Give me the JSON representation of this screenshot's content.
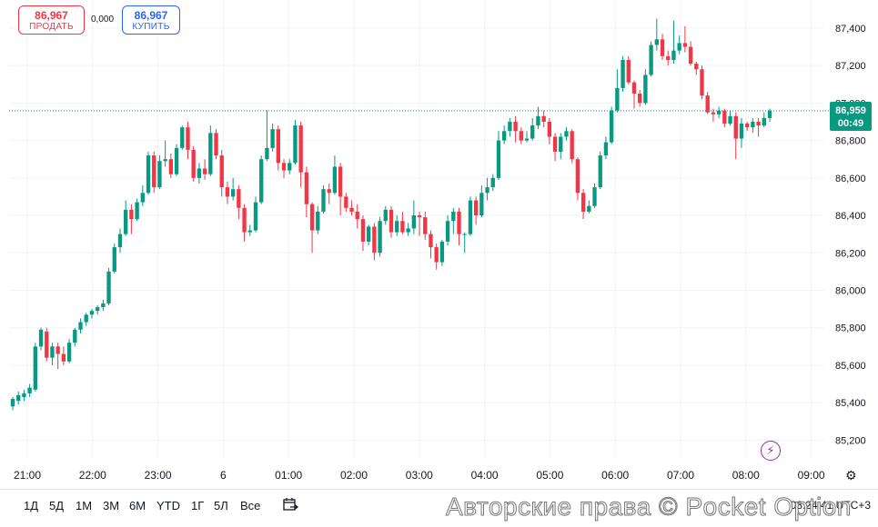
{
  "trade": {
    "sell_price": "86,967",
    "sell_label": "ПРОДАТЬ",
    "buy_price": "86,967",
    "buy_label": "КУПИТЬ",
    "spread": "0,000"
  },
  "price_tag": {
    "price": "86,959",
    "countdown": "00:49"
  },
  "timeframes": [
    "1Д",
    "5Д",
    "1М",
    "3М",
    "6М",
    "YTD",
    "1Г",
    "5Л",
    "Все"
  ],
  "clock": "08:24:41 UTC+3",
  "watermark": "Авторские права © Pocket Option",
  "colors": {
    "up": "#089981",
    "down": "#f23645",
    "grid": "#f0f3fa",
    "last_price_line": "#089981"
  },
  "icons": {
    "calendar": "calendar-range-icon",
    "settings": "settings-icon",
    "bolt": "lightning-icon"
  },
  "chart_data": {
    "type": "candlestick",
    "y_axis_ticks": [
      "85,200",
      "85,400",
      "85,600",
      "85,800",
      "86,000",
      "86,200",
      "86,400",
      "86,600",
      "86,800",
      "87,000",
      "87,200",
      "87,400"
    ],
    "ylim": [
      85100,
      87550
    ],
    "x_axis_labels": [
      "21:00",
      "22:00",
      "23:00",
      "6",
      "01:00",
      "02:00",
      "03:00",
      "04:00",
      "05:00",
      "06:00",
      "07:00",
      "08:00",
      "09:00"
    ],
    "last_price": 86959,
    "candles": [
      [
        85380,
        85420,
        85360,
        85430
      ],
      [
        85410,
        85440,
        85390,
        85460
      ],
      [
        85430,
        85450,
        85410,
        85470
      ],
      [
        85450,
        85480,
        85430,
        85500
      ],
      [
        85470,
        85700,
        85460,
        85720
      ],
      [
        85700,
        85790,
        85680,
        85800
      ],
      [
        85780,
        85640,
        85620,
        85800
      ],
      [
        85640,
        85700,
        85600,
        85720
      ],
      [
        85700,
        85660,
        85580,
        85720
      ],
      [
        85660,
        85620,
        85600,
        85700
      ],
      [
        85620,
        85720,
        85610,
        85740
      ],
      [
        85720,
        85790,
        85700,
        85800
      ],
      [
        85790,
        85830,
        85770,
        85850
      ],
      [
        85830,
        85870,
        85810,
        85880
      ],
      [
        85870,
        85890,
        85850,
        85900
      ],
      [
        85890,
        85910,
        85870,
        85920
      ],
      [
        85910,
        85930,
        85890,
        85950
      ],
      [
        85930,
        86100,
        85920,
        86120
      ],
      [
        86100,
        86230,
        86090,
        86250
      ],
      [
        86230,
        86300,
        86200,
        86330
      ],
      [
        86300,
        86430,
        86290,
        86480
      ],
      [
        86430,
        86380,
        86300,
        86460
      ],
      [
        86380,
        86470,
        86370,
        86490
      ],
      [
        86470,
        86520,
        86450,
        86560
      ],
      [
        86520,
        86720,
        86510,
        86740
      ],
      [
        86720,
        86550,
        86520,
        86740
      ],
      [
        86550,
        86690,
        86540,
        86720
      ],
      [
        86690,
        86700,
        86660,
        86800
      ],
      [
        86700,
        86620,
        86600,
        86730
      ],
      [
        86620,
        86760,
        86610,
        86780
      ],
      [
        86760,
        86870,
        86750,
        86880
      ],
      [
        86870,
        86750,
        86700,
        86900
      ],
      [
        86750,
        86600,
        86580,
        86770
      ],
      [
        86600,
        86650,
        86570,
        86680
      ],
      [
        86650,
        86620,
        86590,
        86700
      ],
      [
        86620,
        86840,
        86610,
        86880
      ],
      [
        86840,
        86720,
        86700,
        86860
      ],
      [
        86720,
        86550,
        86500,
        86750
      ],
      [
        86550,
        86500,
        86460,
        86580
      ],
      [
        86500,
        86540,
        86480,
        86600
      ],
      [
        86540,
        86440,
        86380,
        86560
      ],
      [
        86440,
        86310,
        86260,
        86460
      ],
      [
        86310,
        86320,
        86290,
        86350
      ],
      [
        86320,
        86470,
        86310,
        86500
      ],
      [
        86470,
        86700,
        86460,
        86720
      ],
      [
        86700,
        86760,
        86690,
        86960
      ],
      [
        86760,
        86860,
        86740,
        86890
      ],
      [
        86860,
        86680,
        86640,
        86880
      ],
      [
        86680,
        86640,
        86600,
        86700
      ],
      [
        86640,
        86680,
        86620,
        86700
      ],
      [
        86680,
        86880,
        86670,
        86910
      ],
      [
        86880,
        86630,
        86550,
        86900
      ],
      [
        86630,
        86460,
        86390,
        86660
      ],
      [
        86460,
        86320,
        86200,
        86470
      ],
      [
        86320,
        86420,
        86300,
        86450
      ],
      [
        86420,
        86540,
        86410,
        86560
      ],
      [
        86540,
        86520,
        86460,
        86570
      ],
      [
        86520,
        86660,
        86510,
        86720
      ],
      [
        86660,
        86500,
        86400,
        86680
      ],
      [
        86500,
        86440,
        86420,
        86520
      ],
      [
        86440,
        86420,
        86400,
        86480
      ],
      [
        86420,
        86380,
        86330,
        86460
      ],
      [
        86380,
        86260,
        86210,
        86400
      ],
      [
        86260,
        86340,
        86240,
        86350
      ],
      [
        86340,
        86200,
        86160,
        86360
      ],
      [
        86200,
        86370,
        86180,
        86390
      ],
      [
        86370,
        86430,
        86350,
        86450
      ],
      [
        86430,
        86310,
        86280,
        86450
      ],
      [
        86310,
        86370,
        86290,
        86400
      ],
      [
        86370,
        86310,
        86300,
        86420
      ],
      [
        86310,
        86330,
        86290,
        86360
      ],
      [
        86330,
        86400,
        86300,
        86480
      ],
      [
        86400,
        86390,
        86290,
        86420
      ],
      [
        86390,
        86300,
        86270,
        86420
      ],
      [
        86300,
        86230,
        86170,
        86320
      ],
      [
        86230,
        86150,
        86110,
        86250
      ],
      [
        86150,
        86260,
        86130,
        86270
      ],
      [
        86260,
        86370,
        86240,
        86400
      ],
      [
        86370,
        86420,
        86300,
        86440
      ],
      [
        86420,
        86300,
        86240,
        86440
      ],
      [
        86300,
        86300,
        86200,
        86310
      ],
      [
        86300,
        86480,
        86290,
        86500
      ],
      [
        86480,
        86400,
        86350,
        86500
      ],
      [
        86400,
        86520,
        86390,
        86560
      ],
      [
        86520,
        86550,
        86480,
        86600
      ],
      [
        86550,
        86600,
        86530,
        86620
      ],
      [
        86600,
        86800,
        86590,
        86850
      ],
      [
        86800,
        86850,
        86780,
        86880
      ],
      [
        86850,
        86900,
        86820,
        86920
      ],
      [
        86900,
        86850,
        86790,
        86930
      ],
      [
        86850,
        86800,
        86780,
        86870
      ],
      [
        86800,
        86810,
        86790,
        86850
      ],
      [
        86810,
        86880,
        86800,
        86920
      ],
      [
        86880,
        86930,
        86860,
        86980
      ],
      [
        86930,
        86900,
        86870,
        86960
      ],
      [
        86900,
        86820,
        86780,
        86920
      ],
      [
        86820,
        86740,
        86690,
        86840
      ],
      [
        86740,
        86820,
        86700,
        86840
      ],
      [
        86820,
        86850,
        86800,
        86870
      ],
      [
        86850,
        86700,
        86680,
        86860
      ],
      [
        86700,
        86520,
        86480,
        86710
      ],
      [
        86520,
        86420,
        86380,
        86540
      ],
      [
        86420,
        86450,
        86410,
        86480
      ],
      [
        86450,
        86550,
        86440,
        86570
      ],
      [
        86550,
        86720,
        86540,
        86740
      ],
      [
        86720,
        86790,
        86700,
        86820
      ],
      [
        86790,
        86960,
        86780,
        86980
      ],
      [
        86960,
        87080,
        86950,
        87180
      ],
      [
        87080,
        87230,
        87060,
        87250
      ],
      [
        87230,
        87110,
        87100,
        87250
      ],
      [
        87110,
        87050,
        86970,
        87120
      ],
      [
        87050,
        87000,
        86980,
        87070
      ],
      [
        87000,
        87150,
        86990,
        87180
      ],
      [
        87150,
        87310,
        87140,
        87330
      ],
      [
        87310,
        87340,
        87280,
        87450
      ],
      [
        87340,
        87250,
        87230,
        87370
      ],
      [
        87250,
        87230,
        87200,
        87280
      ],
      [
        87230,
        87280,
        87210,
        87440
      ],
      [
        87280,
        87320,
        87260,
        87360
      ],
      [
        87320,
        87300,
        87270,
        87410
      ],
      [
        87300,
        87210,
        87200,
        87330
      ],
      [
        87210,
        87180,
        87150,
        87220
      ],
      [
        87180,
        87040,
        87020,
        87200
      ],
      [
        87040,
        86950,
        86940,
        87060
      ],
      [
        86950,
        86940,
        86900,
        86970
      ],
      [
        86940,
        86960,
        86920,
        86980
      ],
      [
        86960,
        86890,
        86870,
        86970
      ],
      [
        86890,
        86930,
        86880,
        86960
      ],
      [
        86930,
        86810,
        86700,
        86950
      ],
      [
        86810,
        86890,
        86760,
        86920
      ],
      [
        86890,
        86870,
        86850,
        86900
      ],
      [
        86870,
        86900,
        86840,
        86920
      ],
      [
        86900,
        86880,
        86820,
        86920
      ],
      [
        86880,
        86920,
        86870,
        86950
      ],
      [
        86920,
        86959,
        86900,
        86970
      ]
    ]
  }
}
